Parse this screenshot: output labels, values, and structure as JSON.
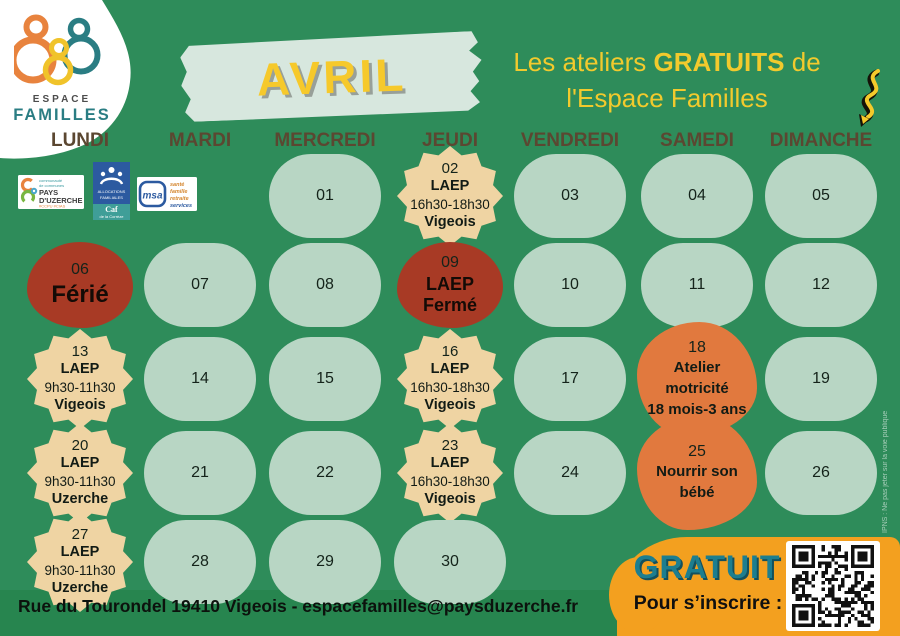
{
  "brand": {
    "espace": "ESPACE",
    "familles": "FAMILLES"
  },
  "header": {
    "month": "AVRIL",
    "tagline_prefix": "Les ateliers",
    "tagline_highlight": "GRATUITS",
    "tagline_suffix": "de",
    "tagline_line2": "l'Espace Familles"
  },
  "day_headers": [
    "LUNDI",
    "MARDI",
    "MERCREDI",
    "JEUDI",
    "VENDREDI",
    "SAMEDI",
    "DIMANCHE"
  ],
  "partners": {
    "uzerche": {
      "line1": "communauté",
      "line2": "de communes",
      "name": "PAYS",
      "name2": "D'UZERCHE",
      "tags": "#CCPU #CIAS"
    },
    "caf": {
      "org1": "ALLOCATIONS",
      "org2": "FAMILIALES",
      "name": "Caf",
      "region": "de la Corrèze"
    },
    "msa": {
      "name": "msa",
      "s1": "santé",
      "s2": "famille",
      "s3": "retraite",
      "s4": "services"
    }
  },
  "calendar": {
    "cells": [
      {
        "row": 0,
        "col": 2,
        "type": "plain",
        "number": "01"
      },
      {
        "row": 0,
        "col": 3,
        "type": "laep",
        "number": "02",
        "lines": [
          "LAEP",
          "16h30-18h30",
          "Vigeois"
        ]
      },
      {
        "row": 0,
        "col": 4,
        "type": "plain",
        "number": "03"
      },
      {
        "row": 0,
        "col": 5,
        "type": "plain",
        "number": "04"
      },
      {
        "row": 0,
        "col": 6,
        "type": "plain",
        "number": "05"
      },
      {
        "row": 1,
        "col": 0,
        "type": "holiday",
        "number": "06",
        "label": "Férié",
        "emphasis": true
      },
      {
        "row": 1,
        "col": 1,
        "type": "plain",
        "number": "07"
      },
      {
        "row": 1,
        "col": 2,
        "type": "plain",
        "number": "08"
      },
      {
        "row": 1,
        "col": 3,
        "type": "holiday",
        "number": "09",
        "label": "LAEP Fermé"
      },
      {
        "row": 1,
        "col": 4,
        "type": "plain",
        "number": "10"
      },
      {
        "row": 1,
        "col": 5,
        "type": "plain",
        "number": "11"
      },
      {
        "row": 1,
        "col": 6,
        "type": "plain",
        "number": "12"
      },
      {
        "row": 2,
        "col": 0,
        "type": "laep",
        "number": "13",
        "lines": [
          "LAEP",
          "9h30-11h30",
          "Vigeois"
        ]
      },
      {
        "row": 2,
        "col": 1,
        "type": "plain",
        "number": "14"
      },
      {
        "row": 2,
        "col": 2,
        "type": "plain",
        "number": "15"
      },
      {
        "row": 2,
        "col": 3,
        "type": "laep",
        "number": "16",
        "lines": [
          "LAEP",
          "16h30-18h30",
          "Vigeois"
        ]
      },
      {
        "row": 2,
        "col": 4,
        "type": "plain",
        "number": "17"
      },
      {
        "row": 2,
        "col": 5,
        "type": "workshop",
        "number": "18",
        "lines": [
          "Atelier",
          "motricité",
          "18 mois-3 ans"
        ]
      },
      {
        "row": 2,
        "col": 6,
        "type": "plain",
        "number": "19"
      },
      {
        "row": 3,
        "col": 0,
        "type": "laep",
        "number": "20",
        "lines": [
          "LAEP",
          "9h30-11h30",
          "Uzerche"
        ]
      },
      {
        "row": 3,
        "col": 1,
        "type": "plain",
        "number": "21"
      },
      {
        "row": 3,
        "col": 2,
        "type": "plain",
        "number": "22"
      },
      {
        "row": 3,
        "col": 3,
        "type": "laep",
        "number": "23",
        "lines": [
          "LAEP",
          "16h30-18h30",
          "Vigeois"
        ]
      },
      {
        "row": 3,
        "col": 4,
        "type": "plain",
        "number": "24"
      },
      {
        "row": 3,
        "col": 5,
        "type": "workshop",
        "number": "25",
        "lines": [
          "Nourrir son",
          "bébé"
        ]
      },
      {
        "row": 3,
        "col": 6,
        "type": "plain",
        "number": "26"
      },
      {
        "row": 4,
        "col": 0,
        "type": "laep",
        "number": "27",
        "lines": [
          "LAEP",
          "9h30-11h30",
          "Uzerche"
        ]
      },
      {
        "row": 4,
        "col": 1,
        "type": "plain",
        "number": "28"
      },
      {
        "row": 4,
        "col": 2,
        "type": "plain",
        "number": "29"
      },
      {
        "row": 4,
        "col": 3,
        "type": "plain",
        "number": "30"
      }
    ]
  },
  "signup": {
    "free": "GRATUIT",
    "instruction": "Pour s’inscrire :"
  },
  "footer": {
    "address": "Rue du Tourondel 19410 Vigeois - espacefamilles@paysduzerche.fr"
  },
  "side_note": "IPNS : Ne pas jeter sur la voie publique",
  "colors": {
    "background": "#2e8c5a",
    "cell": "#b8d6c4",
    "banner": "#d7e7de",
    "event_beige": "#efd4a3",
    "event_red": "#a83a25",
    "event_orange": "#e1793e",
    "signup_orange": "#f3a01f",
    "accent_yellow": "#f4c92a",
    "teal": "#2a7d83",
    "day_header_brown": "#5b4731"
  }
}
